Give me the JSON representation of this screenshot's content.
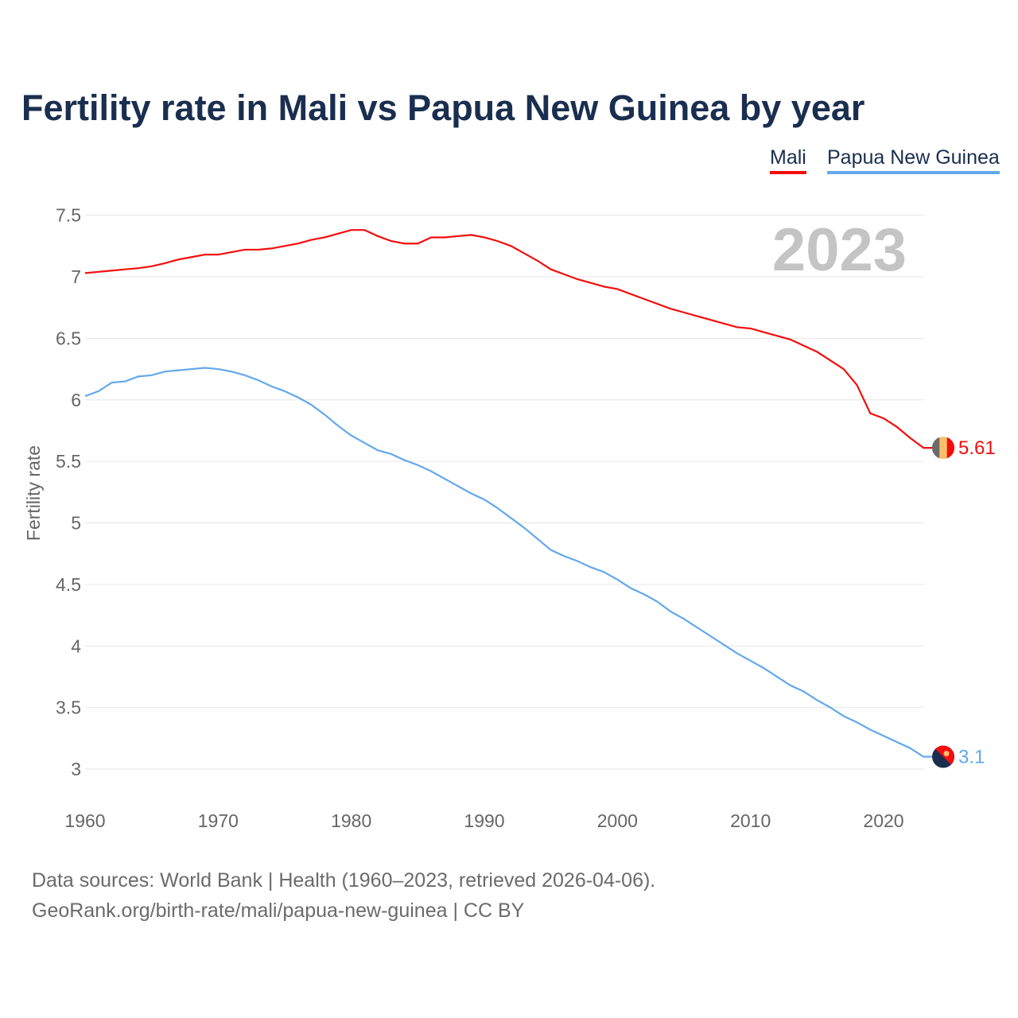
{
  "chart_data": {
    "type": "line",
    "title": "Fertility rate in Mali vs Papua New Guinea by year",
    "xlabel": "",
    "ylabel": "Fertility rate",
    "xlim": [
      1960,
      2023
    ],
    "ylim": [
      2.75,
      7.65
    ],
    "xticks": [
      1960,
      1970,
      1980,
      1990,
      2000,
      2010,
      2020
    ],
    "yticks": [
      3,
      3.5,
      4,
      4.5,
      5,
      5.5,
      6,
      6.5,
      7,
      7.5
    ],
    "grid": true,
    "legend": "top-right",
    "year_label": "2023",
    "x": [
      1960,
      1961,
      1962,
      1963,
      1964,
      1965,
      1966,
      1967,
      1968,
      1969,
      1970,
      1971,
      1972,
      1973,
      1974,
      1975,
      1976,
      1977,
      1978,
      1979,
      1980,
      1981,
      1982,
      1983,
      1984,
      1985,
      1986,
      1987,
      1988,
      1989,
      1990,
      1991,
      1992,
      1993,
      1994,
      1995,
      1996,
      1997,
      1998,
      1999,
      2000,
      2001,
      2002,
      2003,
      2004,
      2005,
      2006,
      2007,
      2008,
      2009,
      2010,
      2011,
      2012,
      2013,
      2014,
      2015,
      2016,
      2017,
      2018,
      2019,
      2020,
      2021,
      2022,
      2023
    ],
    "series": [
      {
        "name": "Mali",
        "color": "#f40d0d",
        "end_label": "5.61",
        "values": [
          7.03,
          7.04,
          7.05,
          7.06,
          7.07,
          7.085,
          7.11,
          7.14,
          7.16,
          7.18,
          7.18,
          7.2,
          7.22,
          7.22,
          7.23,
          7.25,
          7.27,
          7.3,
          7.32,
          7.35,
          7.38,
          7.38,
          7.33,
          7.29,
          7.27,
          7.27,
          7.32,
          7.32,
          7.33,
          7.34,
          7.32,
          7.29,
          7.25,
          7.19,
          7.13,
          7.06,
          7.02,
          6.98,
          6.95,
          6.92,
          6.9,
          6.86,
          6.82,
          6.78,
          6.74,
          6.71,
          6.68,
          6.65,
          6.62,
          6.59,
          6.58,
          6.55,
          6.52,
          6.49,
          6.44,
          6.39,
          6.32,
          6.25,
          6.12,
          5.89,
          5.85,
          5.78,
          5.69,
          5.61
        ]
      },
      {
        "name": "Papua New Guinea",
        "color": "#64a8ec",
        "end_label": "3.1",
        "values": [
          6.03,
          6.07,
          6.14,
          6.15,
          6.19,
          6.2,
          6.23,
          6.24,
          6.25,
          6.26,
          6.25,
          6.23,
          6.2,
          6.16,
          6.11,
          6.07,
          6.02,
          5.96,
          5.88,
          5.79,
          5.71,
          5.65,
          5.59,
          5.56,
          5.51,
          5.47,
          5.42,
          5.36,
          5.3,
          5.24,
          5.19,
          5.12,
          5.04,
          4.96,
          4.87,
          4.78,
          4.73,
          4.69,
          4.64,
          4.6,
          4.54,
          4.47,
          4.42,
          4.36,
          4.28,
          4.22,
          4.15,
          4.08,
          4.01,
          3.94,
          3.88,
          3.82,
          3.75,
          3.68,
          3.63,
          3.56,
          3.5,
          3.43,
          3.38,
          3.32,
          3.27,
          3.22,
          3.17,
          3.1
        ]
      }
    ]
  },
  "footer": {
    "line1": "Data sources: World Bank | Health (1960–2023, retrieved 2026-04-06).",
    "line2": "GeoRank.org/birth-rate/mali/papua-new-guinea | CC BY"
  }
}
